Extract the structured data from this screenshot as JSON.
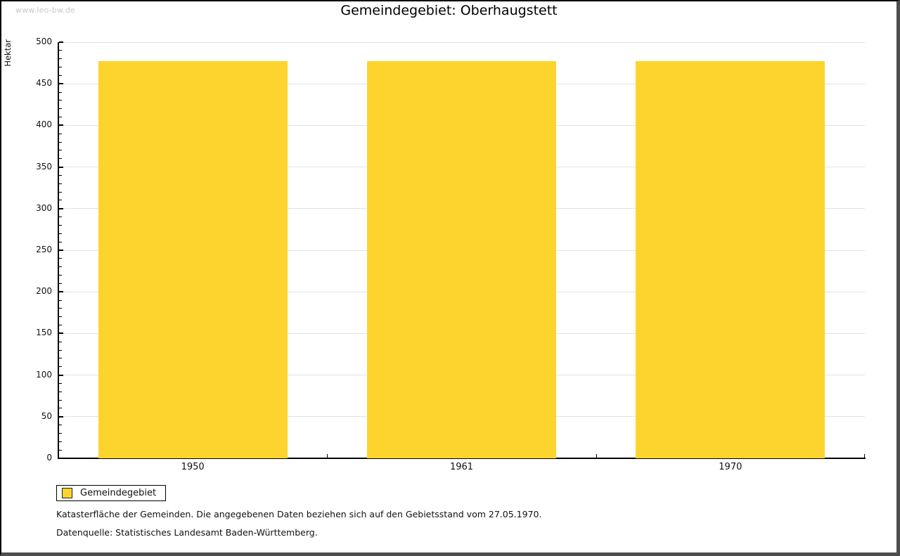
{
  "watermark": "www.leo-bw.de",
  "title": "Gemeindegebiet: Oberhaugstett",
  "chart_data": {
    "type": "bar",
    "title": "Gemeindegebiet: Oberhaugstett",
    "categories": [
      "1950",
      "1961",
      "1970"
    ],
    "series": [
      {
        "name": "Gemeindegebiet",
        "values": [
          477,
          477,
          477
        ]
      }
    ],
    "xlabel": "",
    "ylabel": "Hektar",
    "ylim": [
      0,
      500
    ],
    "ytick_major": 50,
    "ytick_minor": 10,
    "grid": "horizontal-major",
    "legend_position": "bottom-left",
    "bar_color": "#fcd42d"
  },
  "legend": {
    "items": [
      {
        "label": "Gemeindegebiet",
        "color": "#fcd42d"
      }
    ]
  },
  "footnotes": [
    "Katasterfläche der Gemeinden. Die angegebenen Daten beziehen sich auf den Gebietsstand vom 27.05.1970.",
    "Datenquelle: Statistisches Landesamt Baden-Württemberg."
  ],
  "colors": {
    "bar": "#fcd42d",
    "grid": "#e2e2e2",
    "axis": "#000000",
    "text": "#111111",
    "watermark": "#c9c9c9",
    "frame_shadow": "#4d4d4d"
  }
}
